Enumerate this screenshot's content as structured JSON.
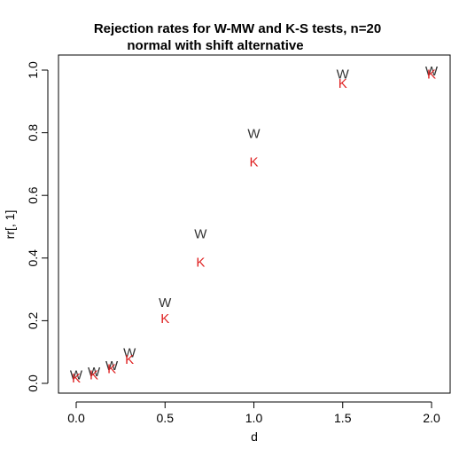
{
  "chart_data": {
    "type": "scatter",
    "title": "Rejection rates for W-MW and K-S tests, n=20",
    "subtitle": "normal with shift alternative",
    "xlabel": "d",
    "ylabel": "rr[, 1]",
    "xlim": [
      0,
      2.0
    ],
    "ylim": [
      0,
      1.0
    ],
    "x_ticks": [
      "0.0",
      "0.5",
      "1.0",
      "1.5",
      "2.0"
    ],
    "y_ticks": [
      "0.0",
      "0.2",
      "0.4",
      "0.6",
      "0.8",
      "1.0"
    ],
    "grid": false,
    "legend": "none",
    "series": [
      {
        "marker": "W",
        "color": "#333333",
        "x": [
          0,
          0.1,
          0.2,
          0.3,
          0.5,
          0.7,
          1.0,
          1.5,
          2.0
        ],
        "y": [
          0.03,
          0.04,
          0.06,
          0.1,
          0.26,
          0.48,
          0.8,
          0.99,
          1.0
        ]
      },
      {
        "marker": "K",
        "color": "#df2020",
        "x": [
          0,
          0.1,
          0.2,
          0.3,
          0.5,
          0.7,
          1.0,
          1.5,
          2.0
        ],
        "y": [
          0.02,
          0.03,
          0.05,
          0.08,
          0.21,
          0.39,
          0.71,
          0.96,
          0.99
        ]
      }
    ]
  }
}
